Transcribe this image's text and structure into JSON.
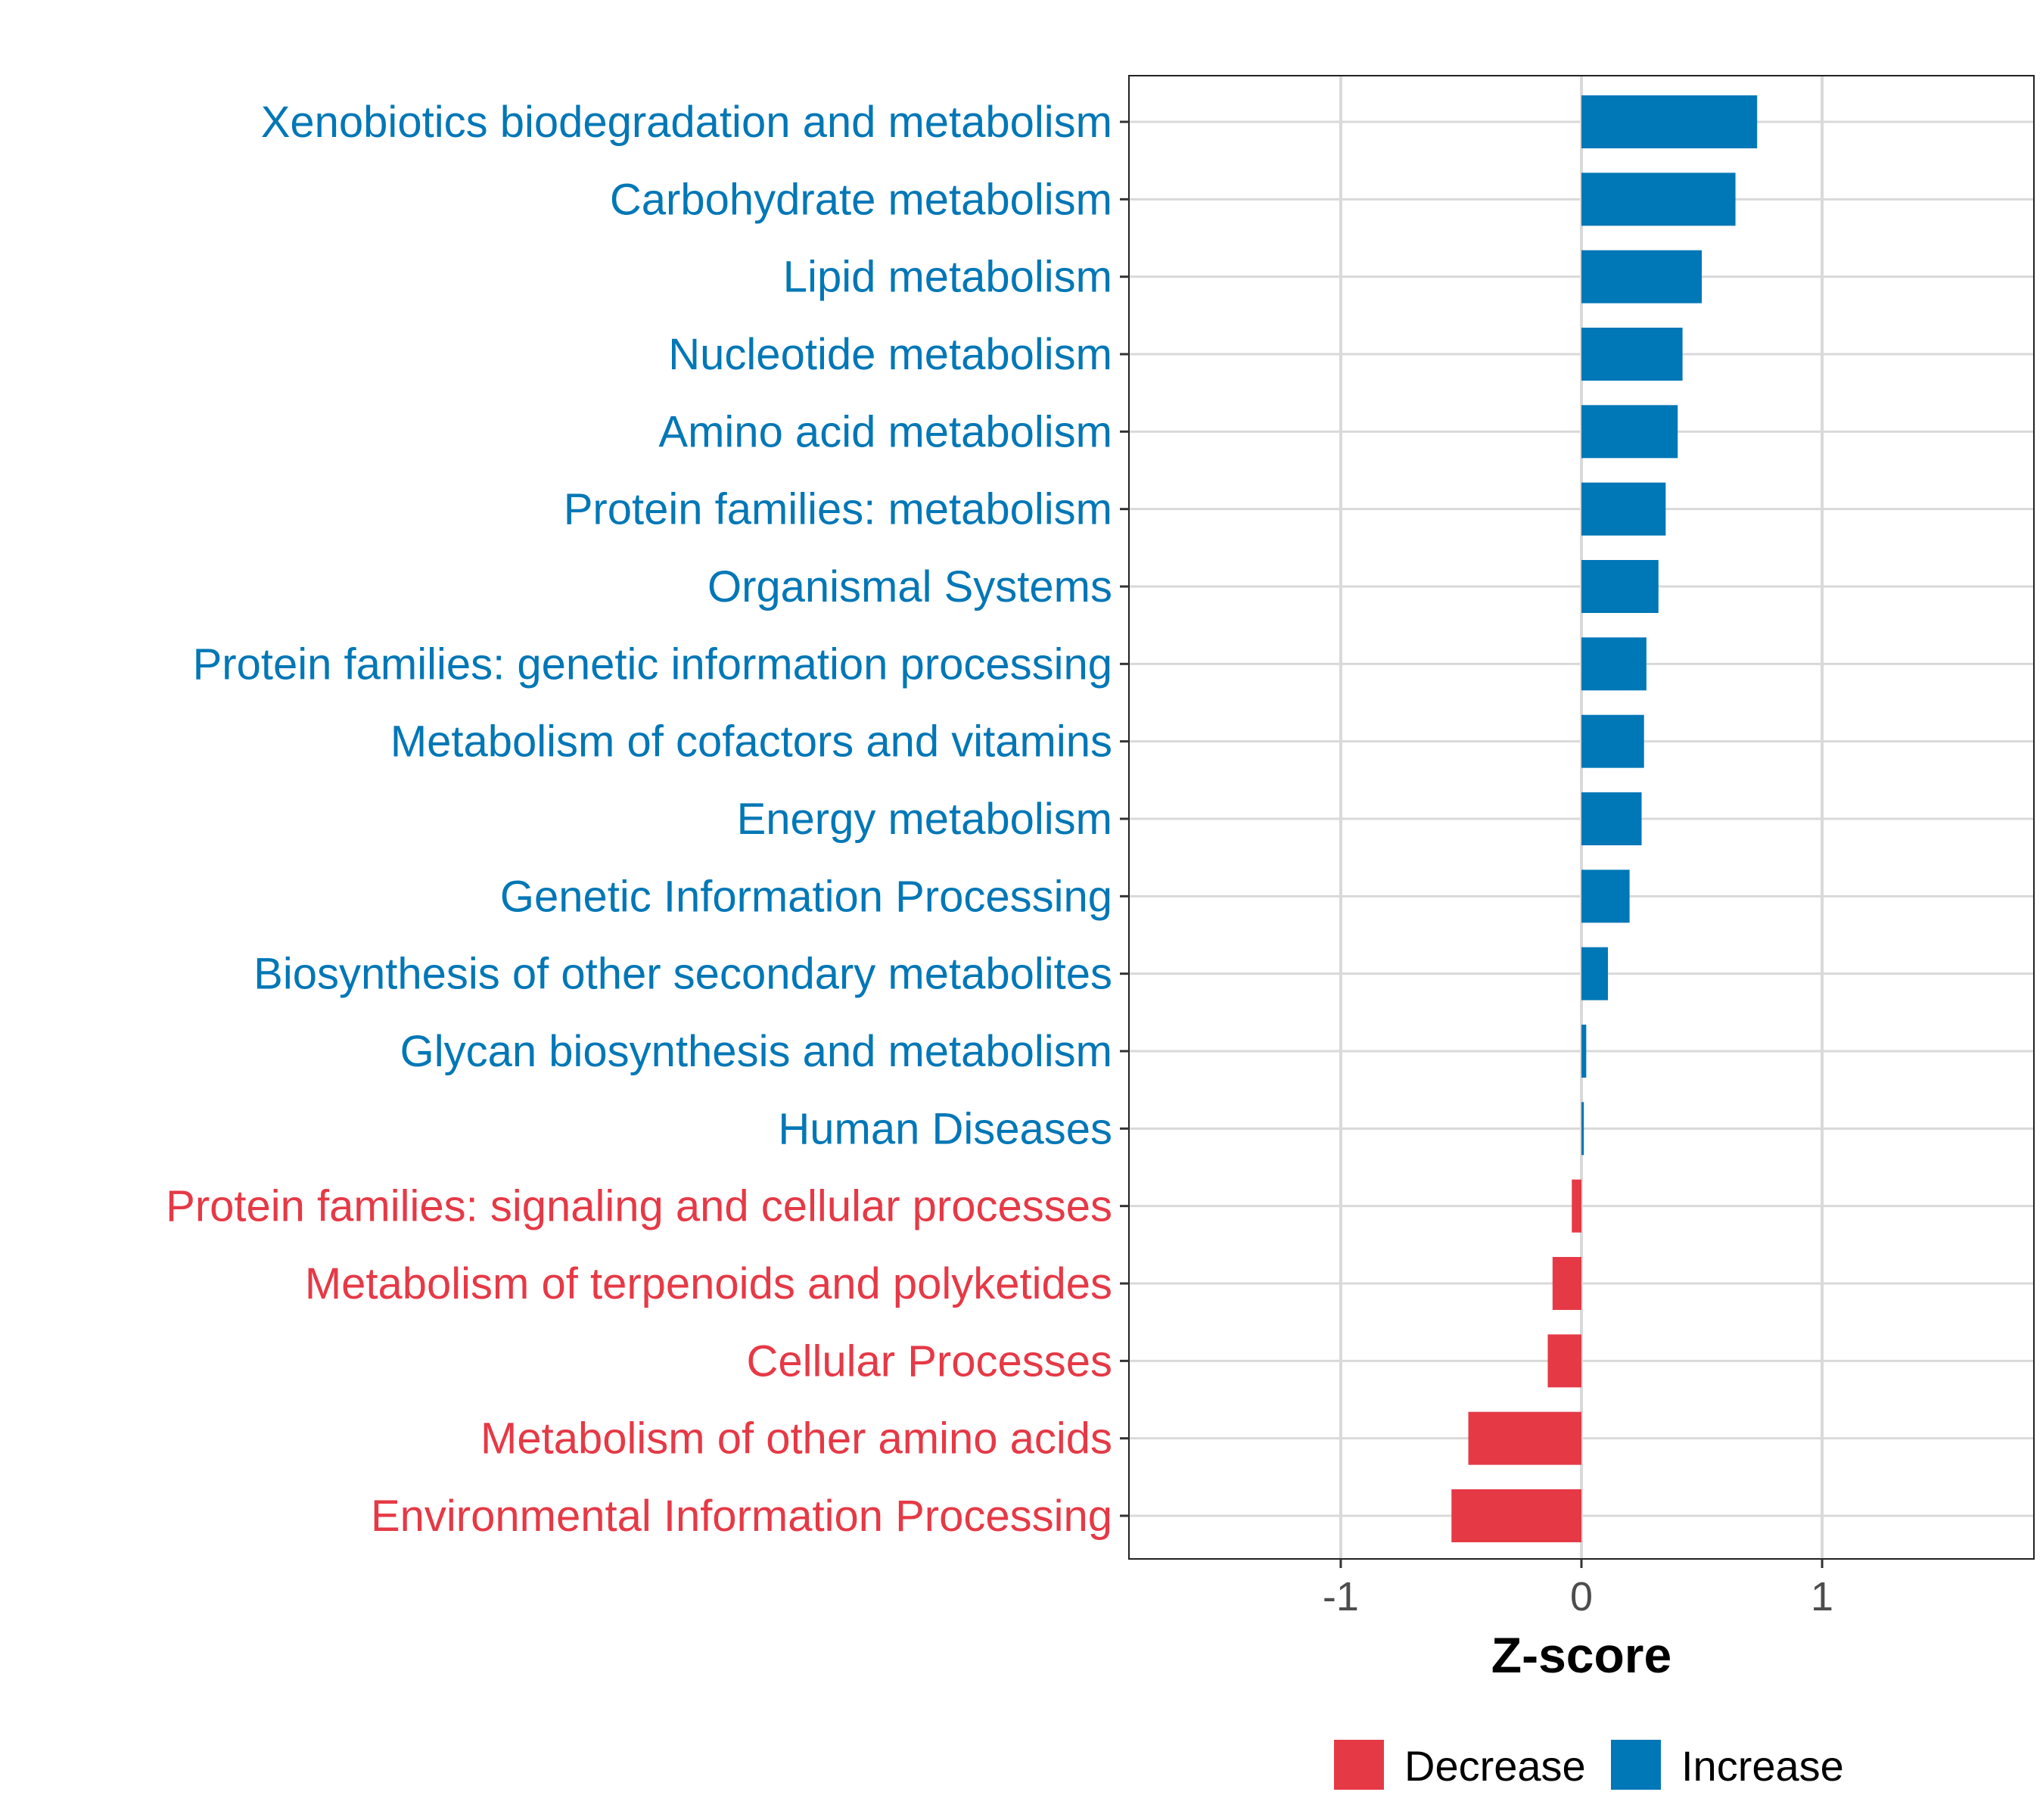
{
  "chart_data": {
    "type": "bar",
    "orientation": "horizontal",
    "title": "",
    "xlabel": "Z-score",
    "ylabel": "",
    "xlim": [
      -1.88,
      1.88
    ],
    "xticks": [
      -1,
      0,
      1
    ],
    "xtick_labels": [
      "-1",
      "0",
      "1"
    ],
    "grid": true,
    "colors": {
      "Decrease": "#E63946",
      "Increase": "#0077B6"
    },
    "legend": {
      "placement": "bottom",
      "entries": [
        "Decrease",
        "Increase"
      ]
    },
    "categories": [
      "Xenobiotics biodegradation and metabolism",
      "Carbohydrate metabolism",
      "Lipid metabolism",
      "Nucleotide metabolism",
      "Amino acid metabolism",
      "Protein families: metabolism",
      "Organismal Systems",
      "Protein families: genetic information processing",
      "Metabolism of cofactors and vitamins",
      "Energy metabolism",
      "Genetic Information Processing",
      "Biosynthesis of other secondary metabolites",
      "Glycan biosynthesis and metabolism",
      "Human Diseases",
      "Protein families: signaling and cellular processes",
      "Metabolism of terpenoids and polyketides",
      "Cellular Processes",
      "Metabolism of other amino acids",
      "Environmental Information Processing"
    ],
    "values": [
      0.73,
      0.64,
      0.5,
      0.42,
      0.4,
      0.35,
      0.32,
      0.27,
      0.26,
      0.25,
      0.2,
      0.11,
      0.02,
      0.01,
      -0.04,
      -0.12,
      -0.14,
      -0.47,
      -0.54
    ]
  }
}
